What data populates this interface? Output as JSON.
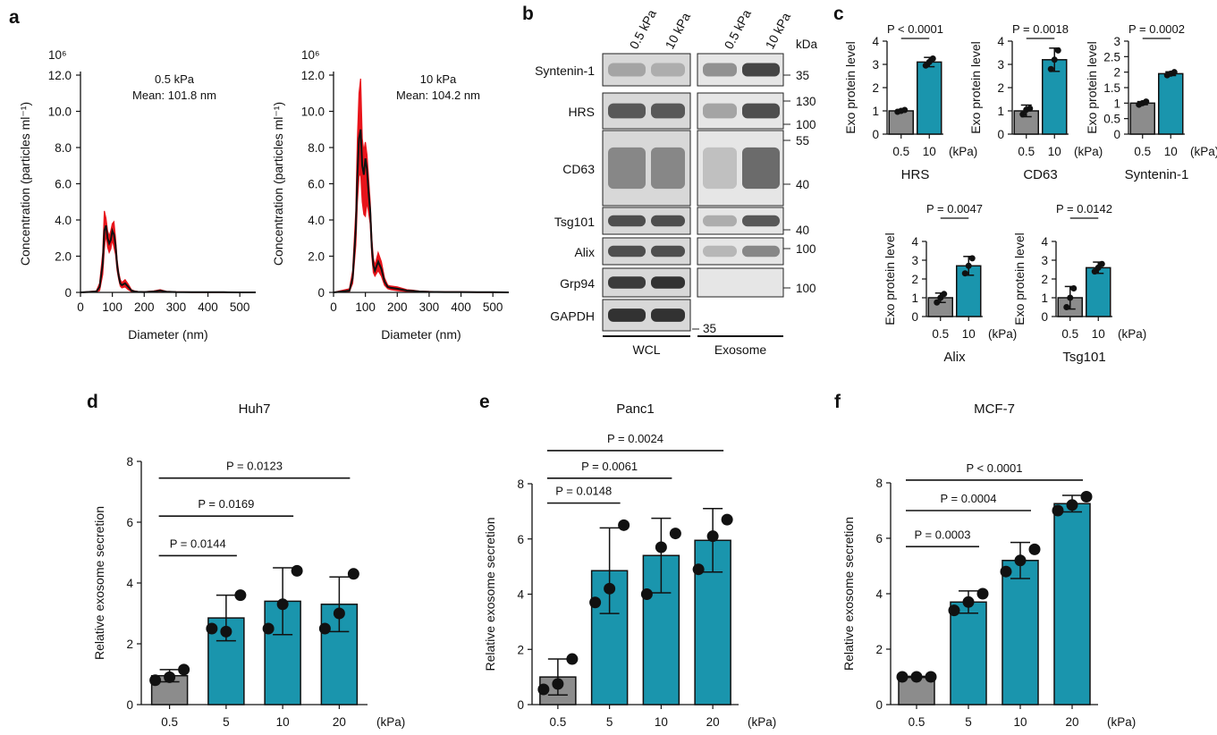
{
  "panels": {
    "a": "a",
    "b": "b",
    "c": "c",
    "d": "d",
    "e": "e",
    "f": "f"
  },
  "chart_data": [
    {
      "id": "a1",
      "type": "line",
      "exponent_label": "10⁶",
      "annotation_1": "0.5 kPa",
      "annotation_2": "Mean: 101.8 nm",
      "xlabel": "Diameter (nm)",
      "ylabel": "Concentration (particles ml⁻¹)",
      "xlim": [
        0,
        550
      ],
      "ylim": [
        0,
        12
      ],
      "x_ticks": [
        "0",
        "100",
        "200",
        "300",
        "400",
        "500"
      ],
      "y_ticks": [
        "0",
        "2.0",
        "4.0",
        "6.0",
        "8.0",
        "10.0",
        "12.0"
      ],
      "x": [
        0,
        50,
        60,
        70,
        75,
        80,
        85,
        90,
        95,
        100,
        105,
        110,
        115,
        120,
        125,
        130,
        140,
        150,
        160,
        170,
        180,
        200,
        230,
        250,
        270,
        300,
        350,
        400,
        450,
        500,
        550
      ],
      "mean": [
        0,
        0.05,
        0.3,
        1.6,
        3.4,
        3.7,
        3.0,
        2.7,
        2.9,
        3.4,
        3.2,
        2.6,
        1.5,
        0.9,
        0.5,
        0.4,
        0.5,
        0.3,
        0.1,
        0.05,
        0.03,
        0.02,
        0.05,
        0.1,
        0.04,
        0.02,
        0.01,
        0.01,
        0.01,
        0,
        0
      ],
      "upper": [
        0,
        0.08,
        0.5,
        2.2,
        4.5,
        4.1,
        3.4,
        3.1,
        3.4,
        3.8,
        3.9,
        3.0,
        1.8,
        1.1,
        0.7,
        0.55,
        0.7,
        0.45,
        0.15,
        0.08,
        0.05,
        0.03,
        0.08,
        0.15,
        0.06,
        0.03,
        0.02,
        0.01,
        0.01,
        0,
        0
      ],
      "lower": [
        0,
        0.02,
        0.1,
        1.0,
        2.4,
        3.2,
        2.5,
        2.2,
        2.4,
        2.9,
        2.5,
        2.1,
        1.2,
        0.7,
        0.35,
        0.25,
        0.3,
        0.15,
        0.05,
        0.02,
        0.01,
        0.01,
        0.02,
        0.05,
        0.02,
        0.01,
        0,
        0,
        0,
        0,
        0
      ]
    },
    {
      "id": "a2",
      "type": "line",
      "exponent_label": "10⁶",
      "annotation_1": "10 kPa",
      "annotation_2": "Mean: 104.2 nm",
      "xlabel": "Diameter (nm)",
      "ylabel": "Concentration (particles ml⁻¹)",
      "xlim": [
        0,
        550
      ],
      "ylim": [
        0,
        12
      ],
      "x_ticks": [
        "0",
        "100",
        "200",
        "300",
        "400",
        "500"
      ],
      "y_ticks": [
        "0",
        "2.0",
        "4.0",
        "6.0",
        "8.0",
        "10.0",
        "12.0"
      ],
      "x": [
        0,
        50,
        60,
        70,
        75,
        80,
        85,
        90,
        95,
        100,
        105,
        110,
        115,
        120,
        125,
        130,
        140,
        150,
        160,
        170,
        180,
        200,
        230,
        250,
        270,
        300,
        350,
        400,
        450,
        500,
        550
      ],
      "mean": [
        0,
        0.1,
        0.8,
        3.5,
        6.5,
        8.5,
        9.0,
        7.0,
        6.5,
        7.4,
        6.8,
        5.5,
        4.5,
        2.5,
        1.5,
        1.2,
        1.7,
        1.3,
        0.6,
        0.3,
        0.25,
        0.2,
        0.1,
        0.08,
        0.05,
        0.03,
        0.02,
        0.02,
        0.01,
        0.01,
        0
      ],
      "upper": [
        0,
        0.2,
        1.2,
        4.5,
        8.5,
        11.0,
        11.8,
        8.5,
        7.8,
        8.3,
        7.6,
        6.3,
        5.0,
        3.0,
        1.9,
        1.5,
        2.2,
        1.7,
        0.8,
        0.4,
        0.35,
        0.3,
        0.15,
        0.12,
        0.07,
        0.05,
        0.03,
        0.03,
        0.02,
        0.02,
        0
      ],
      "lower": [
        0,
        0.05,
        0.5,
        2.6,
        5.0,
        6.4,
        6.6,
        5.0,
        4.3,
        4.2,
        5.0,
        4.4,
        3.8,
        2.0,
        1.1,
        0.9,
        1.2,
        0.9,
        0.4,
        0.2,
        0.15,
        0.1,
        0.05,
        0.04,
        0.02,
        0.01,
        0.01,
        0.01,
        0,
        0,
        0
      ]
    },
    {
      "id": "b",
      "type": "blot",
      "lanes": [
        "0.5 kPa",
        "10 kPa",
        "0.5 kPa",
        "10 kPa"
      ],
      "kda_label": "kDa",
      "groups": [
        "WCL",
        "Exosome"
      ],
      "rows": [
        {
          "label": "Syntenin-1",
          "markers": [
            "35"
          ]
        },
        {
          "label": "HRS",
          "markers": [
            "130",
            "100"
          ]
        },
        {
          "label": "CD63",
          "markers": [
            "55",
            "40"
          ]
        },
        {
          "label": "Tsg101",
          "markers": [
            "40"
          ]
        },
        {
          "label": "Alix",
          "markers": [
            "100"
          ]
        },
        {
          "label": "Grp94",
          "markers": [
            "100"
          ]
        },
        {
          "label": "GAPDH",
          "markers": [
            "35"
          ]
        }
      ]
    },
    {
      "id": "c1",
      "type": "bar",
      "title": "HRS",
      "ylabel": "Exo protein level",
      "p_text": "P < 0.0001",
      "categories": [
        "0.5",
        "10"
      ],
      "unit": "(kPa)",
      "values": [
        1.0,
        3.1
      ],
      "errors": [
        0.05,
        0.2
      ],
      "points": [
        [
          0.96,
          1.0,
          1.04
        ],
        [
          2.95,
          3.1,
          3.25
        ]
      ],
      "ylim": [
        0,
        4
      ],
      "y_ticks": [
        "0",
        "1",
        "2",
        "3",
        "4"
      ]
    },
    {
      "id": "c2",
      "type": "bar",
      "title": "CD63",
      "ylabel": "Exo protein level",
      "p_text": "P = 0.0018",
      "categories": [
        "0.5",
        "10"
      ],
      "unit": "(kPa)",
      "values": [
        1.0,
        3.2
      ],
      "errors": [
        0.25,
        0.5
      ],
      "points": [
        [
          0.85,
          1.05,
          1.1
        ],
        [
          2.8,
          3.2,
          3.6
        ]
      ],
      "ylim": [
        0,
        4
      ],
      "y_ticks": [
        "0",
        "1",
        "2",
        "3",
        "4"
      ]
    },
    {
      "id": "c3",
      "type": "bar",
      "title": "Syntenin-1",
      "ylabel": "Exo protein level",
      "p_text": "P = 0.0002",
      "categories": [
        "0.5",
        "10"
      ],
      "unit": "(kPa)",
      "values": [
        1.0,
        1.95
      ],
      "errors": [
        0.05,
        0.06
      ],
      "points": [
        [
          0.95,
          1.0,
          1.05
        ],
        [
          1.9,
          1.95,
          2.0
        ]
      ],
      "ylim": [
        0,
        3
      ],
      "y_ticks": [
        "0",
        "0.5",
        "1",
        "1.5",
        "2",
        "2.5",
        "3"
      ]
    },
    {
      "id": "c4",
      "type": "bar",
      "title": "Alix",
      "ylabel": "Exo protein level",
      "p_text": "P = 0.0047",
      "categories": [
        "0.5",
        "10"
      ],
      "unit": "(kPa)",
      "values": [
        1.0,
        2.7
      ],
      "errors": [
        0.25,
        0.5
      ],
      "points": [
        [
          0.75,
          1.0,
          1.2
        ],
        [
          2.3,
          2.7,
          3.1
        ]
      ],
      "ylim": [
        0,
        4
      ],
      "y_ticks": [
        "0",
        "1",
        "2",
        "3",
        "4"
      ]
    },
    {
      "id": "c5",
      "type": "bar",
      "title": "Tsg101",
      "ylabel": "Exo protein level",
      "p_text": "P = 0.0142",
      "categories": [
        "0.5",
        "10"
      ],
      "unit": "(kPa)",
      "values": [
        1.0,
        2.6
      ],
      "errors": [
        0.6,
        0.3
      ],
      "points": [
        [
          0.5,
          1.0,
          1.5
        ],
        [
          2.4,
          2.6,
          2.8
        ]
      ],
      "ylim": [
        0,
        4
      ],
      "y_ticks": [
        "0",
        "1",
        "2",
        "3",
        "4"
      ]
    },
    {
      "id": "d",
      "type": "bar",
      "title": "Huh7",
      "ylabel": "Relative exosome secretion",
      "categories": [
        "0.5",
        "5",
        "10",
        "20"
      ],
      "unit": "(kPa)",
      "values": [
        0.95,
        2.85,
        3.4,
        3.3
      ],
      "errors": [
        0.2,
        0.75,
        1.1,
        0.9
      ],
      "points": [
        [
          0.8,
          0.9,
          1.15
        ],
        [
          2.5,
          2.4,
          3.6
        ],
        [
          2.5,
          3.3,
          4.4
        ],
        [
          2.5,
          3.0,
          4.3
        ]
      ],
      "ylim": [
        0,
        8
      ],
      "y_ticks": [
        "0",
        "2",
        "4",
        "6",
        "8"
      ],
      "comparisons": [
        {
          "text": "P = 0.0144",
          "to": 1,
          "y": 4.9
        },
        {
          "text": "P = 0.0169",
          "to": 2,
          "y": 6.2
        },
        {
          "text": "P = 0.0123",
          "to": 3,
          "y": 7.45
        }
      ]
    },
    {
      "id": "e",
      "type": "bar",
      "title": "Panc1",
      "ylabel": "Relative exosome secretion",
      "categories": [
        "0.5",
        "5",
        "10",
        "20"
      ],
      "unit": "(kPa)",
      "values": [
        1.0,
        4.85,
        5.4,
        5.95
      ],
      "errors": [
        0.65,
        1.55,
        1.35,
        1.15
      ],
      "points": [
        [
          0.55,
          0.75,
          1.65
        ],
        [
          3.7,
          4.2,
          6.5
        ],
        [
          4.0,
          5.7,
          6.2
        ],
        [
          4.9,
          6.1,
          6.7
        ]
      ],
      "ylim": [
        0,
        8
      ],
      "y_ticks": [
        "0",
        "2",
        "4",
        "6",
        "8"
      ],
      "comparisons": [
        {
          "text": "P = 0.0148",
          "to": 1,
          "y": 7.3
        },
        {
          "text": "P = 0.0061",
          "to": 2,
          "y": 8.2
        },
        {
          "text": "P = 0.0024",
          "to": 3,
          "y": 9.2
        }
      ]
    },
    {
      "id": "f",
      "type": "bar",
      "title": "MCF-7",
      "ylabel": "Relative exosome secretion",
      "categories": [
        "0.5",
        "5",
        "10",
        "20"
      ],
      "unit": "(kPa)",
      "values": [
        1.0,
        3.7,
        5.2,
        7.25
      ],
      "errors": [
        0.02,
        0.4,
        0.65,
        0.3
      ],
      "points": [
        [
          1.0,
          1.0,
          1.0
        ],
        [
          3.4,
          3.7,
          4.0
        ],
        [
          4.8,
          5.2,
          5.6
        ],
        [
          7.0,
          7.2,
          7.5
        ]
      ],
      "ylim": [
        0,
        8
      ],
      "y_ticks": [
        "0",
        "2",
        "4",
        "6",
        "8"
      ],
      "comparisons": [
        {
          "text": "P = 0.0003",
          "to": 1,
          "y": 5.7
        },
        {
          "text": "P = 0.0004",
          "to": 2,
          "y": 7.0
        },
        {
          "text": "P < 0.0001",
          "to": 3,
          "y": 8.1
        }
      ]
    }
  ],
  "colors": {
    "gray": "#8c8c8c",
    "teal": "#1a95ad",
    "black": "#111111",
    "red": "#e8141b"
  }
}
